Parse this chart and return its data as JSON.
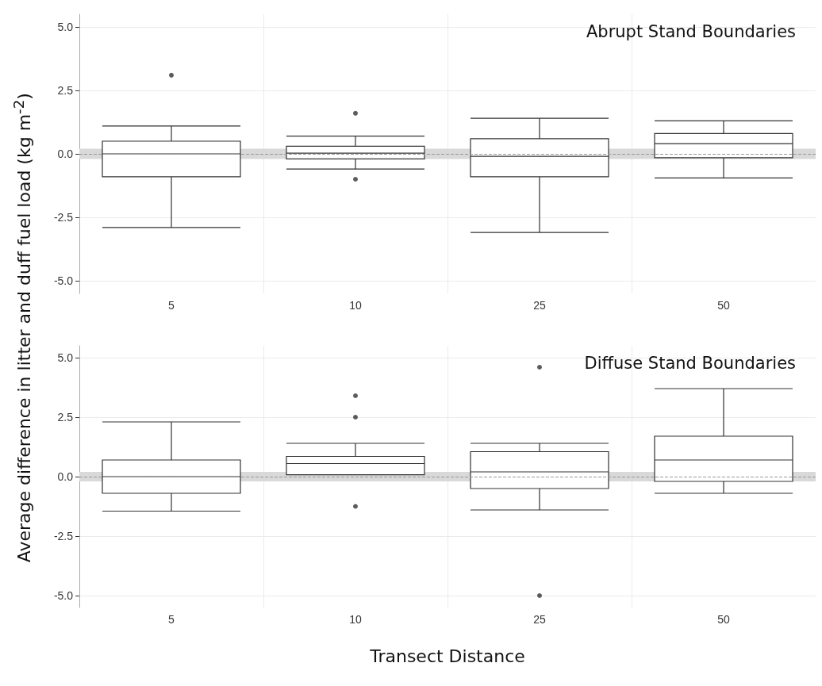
{
  "chart_data": [
    {
      "type": "box",
      "title": "Abrupt Stand Boundaries",
      "ylabel": "Average difference in litter and duff fuel load (kg m$^{-2}$)",
      "categories": [
        "5",
        "10",
        "25",
        "50"
      ],
      "color": "#333333",
      "boxes": [
        {
          "low": -2.9,
          "q1": -0.9,
          "median": 0,
          "q3": 0.5,
          "high": 1.1,
          "outliers": [
            3.1
          ]
        },
        {
          "low": -0.6,
          "q1": -0.2,
          "median": 0.03,
          "q3": 0.3,
          "high": 0.7,
          "outliers": [
            1.6,
            -1.0
          ]
        },
        {
          "low": -3.1,
          "q1": -0.9,
          "median": -0.1,
          "q3": 0.6,
          "high": 1.4
        },
        {
          "low": -0.95,
          "q1": -0.15,
          "median": 0.4,
          "q3": 0.8,
          "high": 1.3
        }
      ],
      "ylim": [
        -5.5,
        5.5
      ],
      "yticks": [
        {
          "value": -5,
          "label": "-5.0"
        },
        {
          "value": -2.5,
          "label": "-2.5"
        },
        {
          "value": 0,
          "label": "0.0"
        },
        {
          "value": 2.5,
          "label": "2.5"
        },
        {
          "value": 5,
          "label": "5.0"
        }
      ],
      "grid": true,
      "ref_lines": [
        {
          "axis": "y",
          "value": 0,
          "label": null,
          "color": "#999999",
          "line_style": "dashed"
        }
      ],
      "bands": [
        {
          "axis": "y",
          "from": -0.2,
          "to": 0.2,
          "label": null,
          "color": "#d9d9d9"
        }
      ]
    },
    {
      "type": "box",
      "title": "Diffuse Stand Boundaries",
      "xlabel": "Transect Distance",
      "categories": [
        "5",
        "10",
        "25",
        "50"
      ],
      "color": "#333333",
      "boxes": [
        {
          "low": -1.45,
          "q1": -0.7,
          "median": 0,
          "q3": 0.7,
          "high": 2.3
        },
        {
          "low": 0.08,
          "q1": 0.08,
          "median": 0.55,
          "q3": 0.85,
          "high": 1.4,
          "outliers": [
            3.4,
            2.5,
            -1.25
          ]
        },
        {
          "low": -1.4,
          "q1": -0.5,
          "median": 0.2,
          "q3": 1.05,
          "high": 1.4,
          "outliers": [
            4.6,
            -5.0
          ]
        },
        {
          "low": -0.7,
          "q1": -0.2,
          "median": 0.7,
          "q3": 1.7,
          "high": 3.7
        }
      ],
      "ylim": [
        -5.5,
        5.5
      ],
      "yticks": [
        {
          "value": -5,
          "label": "-5.0"
        },
        {
          "value": -2.5,
          "label": "-2.5"
        },
        {
          "value": 0,
          "label": "0.0"
        },
        {
          "value": 2.5,
          "label": "2.5"
        },
        {
          "value": 5,
          "label": "5.0"
        }
      ],
      "grid": true,
      "ref_lines": [
        {
          "axis": "y",
          "value": 0,
          "label": null,
          "color": "#999999",
          "line_style": "dashed"
        }
      ],
      "bands": [
        {
          "axis": "y",
          "from": -0.2,
          "to": 0.2,
          "label": null,
          "color": "#d9d9d9"
        }
      ]
    }
  ]
}
